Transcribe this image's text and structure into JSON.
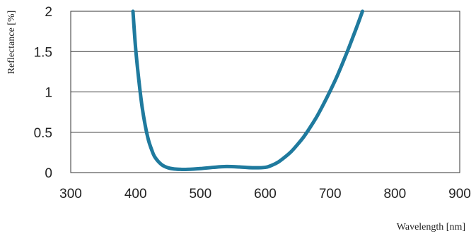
{
  "chart_data": {
    "type": "line",
    "title": "",
    "xlabel": "Wavelength [nm]",
    "ylabel": "Reflectance [%]",
    "xlim": [
      300,
      900
    ],
    "ylim": [
      0,
      2
    ],
    "x_ticks": [
      "300",
      "400",
      "500",
      "600",
      "700",
      "800",
      "900"
    ],
    "y_ticks": [
      "0",
      "0.5",
      "1",
      "1.5",
      "2"
    ],
    "grid": "horizontal",
    "legend": "none",
    "color": "#1f7a9e",
    "series": [
      {
        "x": [
          396,
          400,
          405,
          410,
          415,
          420,
          425,
          430,
          440,
          450,
          460,
          470,
          480,
          500,
          520,
          540,
          560,
          580,
          600,
          610,
          620,
          630,
          640,
          650,
          660,
          670,
          680,
          690,
          700,
          710,
          720,
          730,
          740,
          750
        ],
        "values": [
          2.0,
          1.55,
          1.15,
          0.82,
          0.58,
          0.4,
          0.28,
          0.19,
          0.1,
          0.06,
          0.045,
          0.04,
          0.04,
          0.05,
          0.065,
          0.075,
          0.07,
          0.06,
          0.065,
          0.09,
          0.13,
          0.19,
          0.26,
          0.35,
          0.45,
          0.57,
          0.7,
          0.85,
          1.01,
          1.18,
          1.37,
          1.57,
          1.78,
          2.0
        ]
      }
    ]
  }
}
